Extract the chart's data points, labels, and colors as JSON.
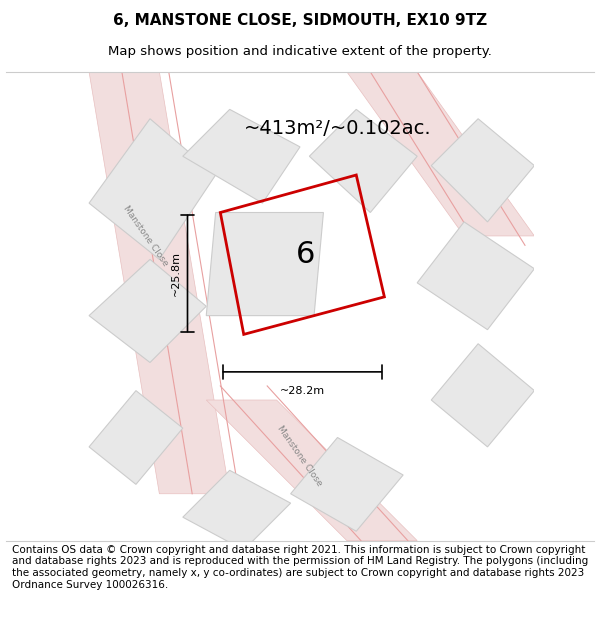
{
  "title": "6, MANSTONE CLOSE, SIDMOUTH, EX10 9TZ",
  "subtitle": "Map shows position and indicative extent of the property.",
  "footer": "Contains OS data © Crown copyright and database right 2021. This information is subject to Crown copyright and database rights 2023 and is reproduced with the permission of HM Land Registry. The polygons (including the associated geometry, namely x, y co-ordinates) are subject to Crown copyright and database rights 2023 Ordnance Survey 100026316.",
  "area_label": "~413m²/~0.102ac.",
  "width_label": "~28.2m",
  "height_label": "~25.8m",
  "plot_number": "6",
  "bg_color": "#f5f5f5",
  "map_bg": "#ffffff",
  "road_color": "#f0d0d0",
  "building_fill": "#e0e0e0",
  "building_edge": "#cccccc",
  "plot_outline_color": "#cc0000",
  "road_label": "Manstone Close",
  "title_fontsize": 11,
  "subtitle_fontsize": 9.5,
  "footer_fontsize": 7.5
}
